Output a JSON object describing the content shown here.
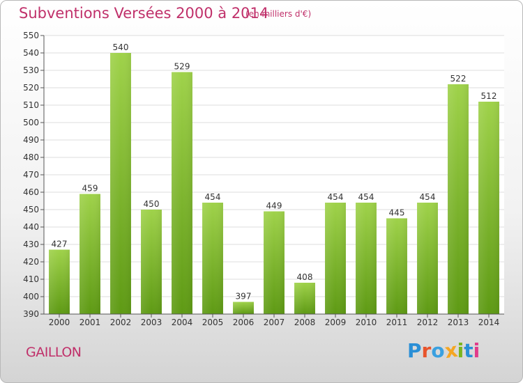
{
  "header": {
    "title": "Subventions Versées 2000 à 2014",
    "subtitle": "(en milliers d'€)"
  },
  "footer": {
    "city": "GAILLON",
    "logo_text": "Proxiti",
    "logo_colors": [
      "#2a8fd6",
      "#e8542c",
      "#3aa0e0",
      "#f5a623",
      "#7ab51d",
      "#2a8fd6",
      "#e23b8a"
    ]
  },
  "chart_data": {
    "type": "bar",
    "title": "Subventions Versées 2000 à 2014",
    "subtitle": "(en milliers d'€)",
    "categories": [
      "2000",
      "2001",
      "2002",
      "2003",
      "2004",
      "2005",
      "2006",
      "2007",
      "2008",
      "2009",
      "2010",
      "2011",
      "2012",
      "2013",
      "2014"
    ],
    "values": [
      427,
      459,
      540,
      450,
      529,
      454,
      397,
      449,
      408,
      454,
      454,
      445,
      454,
      522,
      512
    ],
    "ylim": [
      390,
      550
    ],
    "yticks": [
      390,
      400,
      410,
      420,
      430,
      440,
      450,
      460,
      470,
      480,
      490,
      500,
      510,
      520,
      530,
      540,
      550
    ],
    "grid": true,
    "bar_color_top": "#9fd24a",
    "bar_color_bottom": "#5e9a14",
    "grid_color": "#dcdcdc",
    "xlabel": "",
    "ylabel": ""
  }
}
